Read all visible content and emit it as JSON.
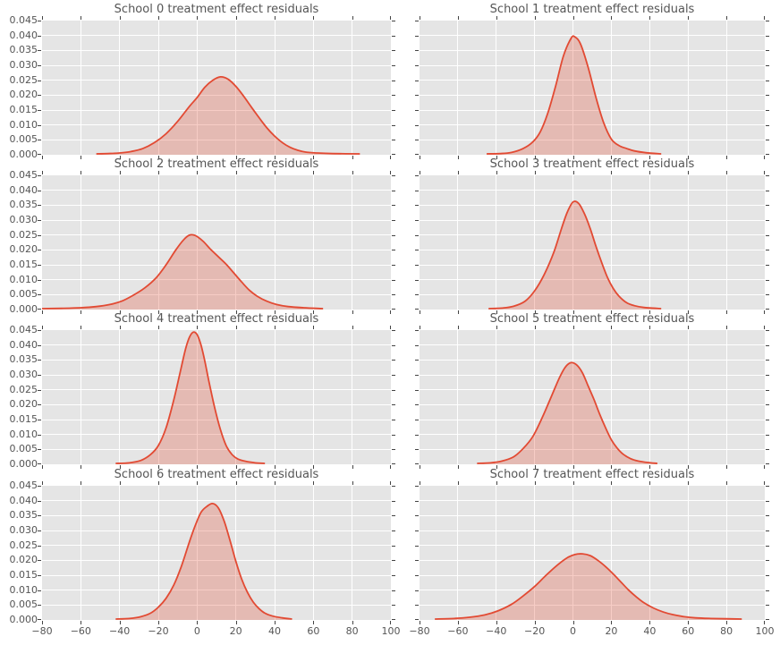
{
  "figure": {
    "background": "#ffffff",
    "axes_background": "#e5e5e5",
    "grid_color": "#ffffff",
    "line_color": "#e24a33",
    "fill_color": "rgba(226,74,51,0.28)",
    "text_color": "#555555",
    "tick_color": "#444444"
  },
  "axes": {
    "x_range": [
      -80,
      100
    ],
    "y_range": [
      0,
      0.045
    ],
    "x_tick_labels": [
      "−80",
      "−60",
      "−40",
      "−20",
      "0",
      "20",
      "40",
      "60",
      "80",
      "100"
    ],
    "y_tick_labels": [
      "0.000",
      "0.005",
      "0.010",
      "0.015",
      "0.020",
      "0.025",
      "0.030",
      "0.035",
      "0.040",
      "0.045"
    ],
    "grid": "on",
    "ticks": "outward, all four sides",
    "y_labels_only_left_column": true,
    "x_labels_only_bottom_row": true
  },
  "chart_data": [
    {
      "type": "area",
      "title": "School 0 treatment effect residuals",
      "xlim": [
        -80,
        100
      ],
      "ylim": [
        0,
        0.045
      ],
      "x": [
        -52,
        -46,
        -40,
        -34,
        -28,
        -22,
        -16,
        -10,
        -4,
        0,
        4,
        8,
        12,
        16,
        20,
        24,
        28,
        32,
        36,
        40,
        44,
        48,
        52,
        56,
        62,
        70,
        84
      ],
      "y": [
        0,
        0.0001,
        0.0003,
        0.0008,
        0.0018,
        0.0038,
        0.0068,
        0.011,
        0.016,
        0.019,
        0.0225,
        0.0248,
        0.026,
        0.0252,
        0.0228,
        0.0195,
        0.0158,
        0.0122,
        0.0088,
        0.006,
        0.0038,
        0.0022,
        0.0012,
        0.0006,
        0.0003,
        0.0001,
        0
      ]
    },
    {
      "type": "area",
      "title": "School 1 treatment effect residuals",
      "xlim": [
        -80,
        100
      ],
      "ylim": [
        0,
        0.045
      ],
      "x": [
        -45,
        -38,
        -32,
        -26,
        -21,
        -17,
        -13,
        -9,
        -5,
        -1,
        1,
        4,
        8,
        12,
        16,
        20,
        24,
        28,
        32,
        38,
        46
      ],
      "y": [
        0,
        0.0001,
        0.0005,
        0.0018,
        0.004,
        0.0075,
        0.014,
        0.023,
        0.033,
        0.039,
        0.0395,
        0.037,
        0.029,
        0.019,
        0.0105,
        0.005,
        0.0028,
        0.0018,
        0.001,
        0.0004,
        0
      ]
    },
    {
      "type": "area",
      "title": "School 2 treatment effect residuals",
      "xlim": [
        -80,
        100
      ],
      "ylim": [
        0,
        0.045
      ],
      "x": [
        -80,
        -70,
        -60,
        -52,
        -45,
        -39,
        -33,
        -27,
        -21,
        -16,
        -11,
        -7,
        -4,
        -1,
        3,
        7,
        11,
        15,
        19,
        23,
        27,
        31,
        36,
        41,
        47,
        55,
        65
      ],
      "y": [
        0,
        0.0001,
        0.0003,
        0.0007,
        0.0014,
        0.0025,
        0.0045,
        0.007,
        0.0105,
        0.0148,
        0.0198,
        0.0232,
        0.0248,
        0.0247,
        0.0228,
        0.02,
        0.0175,
        0.015,
        0.012,
        0.009,
        0.0062,
        0.0042,
        0.0025,
        0.0014,
        0.0007,
        0.0003,
        0
      ]
    },
    {
      "type": "area",
      "title": "School 3 treatment effect residuals",
      "xlim": [
        -80,
        100
      ],
      "ylim": [
        0,
        0.045
      ],
      "x": [
        -44,
        -37,
        -31,
        -25,
        -20,
        -15,
        -10,
        -6,
        -3,
        0,
        3,
        6,
        9,
        12,
        15,
        18,
        21,
        24,
        28,
        32,
        37,
        46
      ],
      "y": [
        0,
        0.0002,
        0.0008,
        0.0025,
        0.006,
        0.0115,
        0.019,
        0.027,
        0.0325,
        0.036,
        0.0355,
        0.032,
        0.027,
        0.021,
        0.0155,
        0.0105,
        0.0068,
        0.0042,
        0.002,
        0.001,
        0.0004,
        0
      ]
    },
    {
      "type": "area",
      "title": "School 4 treatment effect residuals",
      "xlim": [
        -80,
        100
      ],
      "ylim": [
        0,
        0.045
      ],
      "x": [
        -42,
        -35,
        -29,
        -24,
        -20,
        -16,
        -12,
        -9,
        -6,
        -4,
        -2,
        0,
        2,
        4,
        6,
        9,
        12,
        15,
        18,
        21,
        25,
        30,
        35
      ],
      "y": [
        0,
        0.0002,
        0.001,
        0.003,
        0.006,
        0.012,
        0.0215,
        0.03,
        0.0385,
        0.0425,
        0.0443,
        0.0435,
        0.04,
        0.0345,
        0.028,
        0.019,
        0.0115,
        0.006,
        0.003,
        0.0015,
        0.0007,
        0.0002,
        0
      ]
    },
    {
      "type": "area",
      "title": "School 5 treatment effect residuals",
      "xlim": [
        -80,
        100
      ],
      "ylim": [
        0,
        0.045
      ],
      "x": [
        -50,
        -43,
        -37,
        -31,
        -26,
        -21,
        -16,
        -11,
        -7,
        -4,
        -1,
        2,
        5,
        8,
        11,
        14,
        17,
        20,
        23,
        26,
        30,
        34,
        39,
        44
      ],
      "y": [
        0,
        0.0002,
        0.0008,
        0.0022,
        0.005,
        0.009,
        0.0155,
        0.023,
        0.029,
        0.0325,
        0.034,
        0.0332,
        0.0305,
        0.026,
        0.0215,
        0.0165,
        0.012,
        0.008,
        0.0052,
        0.0032,
        0.0016,
        0.0008,
        0.0003,
        0
      ]
    },
    {
      "type": "area",
      "title": "School 6 treatment effect residuals",
      "xlim": [
        -80,
        100
      ],
      "ylim": [
        0,
        0.045
      ],
      "x": [
        -42,
        -35,
        -29,
        -24,
        -20,
        -16,
        -12,
        -8,
        -4,
        -1,
        2,
        5,
        8,
        11,
        14,
        17,
        20,
        23,
        26,
        29,
        32,
        35,
        39,
        44,
        49
      ],
      "y": [
        0,
        0.0002,
        0.0008,
        0.002,
        0.004,
        0.007,
        0.0115,
        0.018,
        0.026,
        0.0315,
        0.036,
        0.038,
        0.039,
        0.0375,
        0.033,
        0.0265,
        0.0195,
        0.0135,
        0.009,
        0.0057,
        0.0035,
        0.002,
        0.001,
        0.0004,
        0
      ]
    },
    {
      "type": "area",
      "title": "School 7 treatment effect residuals",
      "xlim": [
        -80,
        100
      ],
      "ylim": [
        0,
        0.045
      ],
      "x": [
        -72,
        -62,
        -54,
        -46,
        -39,
        -32,
        -26,
        -20,
        -14,
        -8,
        -3,
        1,
        5,
        9,
        13,
        17,
        21,
        25,
        29,
        33,
        37,
        42,
        47,
        52,
        58,
        64,
        72,
        80,
        88
      ],
      "y": [
        0,
        0.0002,
        0.0006,
        0.0014,
        0.0028,
        0.005,
        0.0078,
        0.011,
        0.0148,
        0.0183,
        0.0207,
        0.0218,
        0.022,
        0.0214,
        0.0198,
        0.0177,
        0.0152,
        0.0125,
        0.0098,
        0.0075,
        0.0055,
        0.0037,
        0.0024,
        0.0015,
        0.0008,
        0.0004,
        0.0002,
        0.0001,
        0
      ]
    }
  ]
}
